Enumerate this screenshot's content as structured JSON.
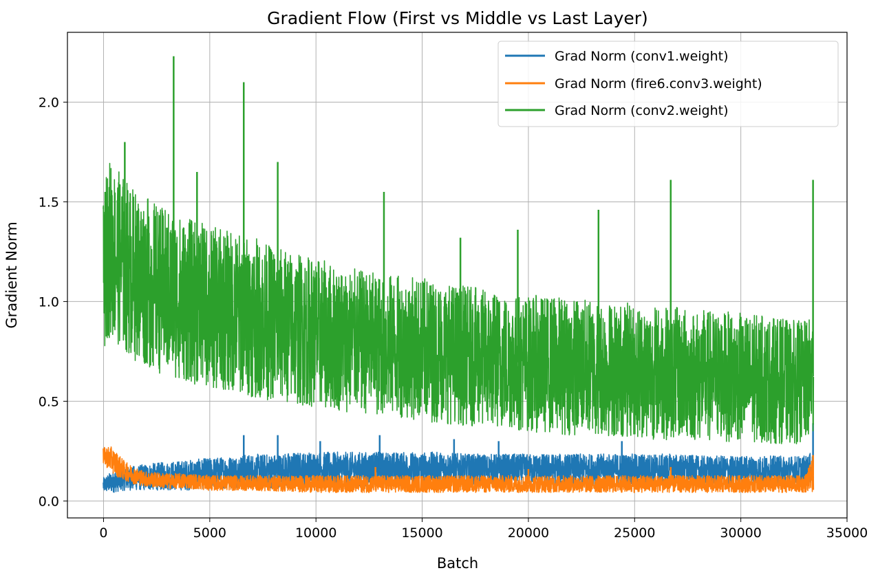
{
  "chart_data": {
    "type": "line",
    "title": "Gradient Flow (First vs Middle vs Last Layer)",
    "xlabel": "Batch",
    "ylabel": "Gradient Norm",
    "xlim": [
      -1700,
      35000
    ],
    "ylim": [
      -0.085,
      2.35
    ],
    "grid": true,
    "legend_position": "top-right",
    "x_ticks": [
      {
        "value": 0,
        "label": "0"
      },
      {
        "value": 5000,
        "label": "5000"
      },
      {
        "value": 10000,
        "label": "10000"
      },
      {
        "value": 15000,
        "label": "15000"
      },
      {
        "value": 20000,
        "label": "20000"
      },
      {
        "value": 25000,
        "label": "25000"
      },
      {
        "value": 30000,
        "label": "30000"
      },
      {
        "value": 35000,
        "label": "35000"
      }
    ],
    "y_ticks": [
      {
        "value": 0.0,
        "label": "0.0"
      },
      {
        "value": 0.5,
        "label": "0.5"
      },
      {
        "value": 1.0,
        "label": "1.0"
      },
      {
        "value": 1.5,
        "label": "1.5"
      },
      {
        "value": 2.0,
        "label": "2.0"
      }
    ],
    "x_range": [
      0,
      33400
    ],
    "series": [
      {
        "name": "Grad Norm (conv1.weight)",
        "color": "#1f77b4",
        "x": [
          0,
          500,
          1000,
          2000,
          3000,
          4000,
          5000,
          6000,
          7000,
          8000,
          9000,
          10000,
          11000,
          12000,
          13000,
          14000,
          15000,
          16000,
          17000,
          18000,
          19000,
          20000,
          21000,
          22000,
          23000,
          24000,
          25000,
          26000,
          27000,
          28000,
          29000,
          30000,
          31000,
          32000,
          33000,
          33400
        ],
        "upper": [
          0.12,
          0.16,
          0.17,
          0.19,
          0.2,
          0.21,
          0.22,
          0.23,
          0.24,
          0.24,
          0.25,
          0.25,
          0.25,
          0.25,
          0.25,
          0.25,
          0.25,
          0.25,
          0.24,
          0.24,
          0.24,
          0.24,
          0.24,
          0.24,
          0.24,
          0.24,
          0.24,
          0.24,
          0.24,
          0.23,
          0.23,
          0.23,
          0.23,
          0.23,
          0.23,
          0.25
        ],
        "lower": [
          0.04,
          0.04,
          0.05,
          0.05,
          0.05,
          0.05,
          0.06,
          0.06,
          0.06,
          0.06,
          0.06,
          0.07,
          0.07,
          0.07,
          0.07,
          0.07,
          0.07,
          0.08,
          0.08,
          0.08,
          0.08,
          0.08,
          0.08,
          0.08,
          0.08,
          0.08,
          0.08,
          0.08,
          0.08,
          0.08,
          0.08,
          0.08,
          0.08,
          0.08,
          0.08,
          0.08
        ],
        "spikes": [
          {
            "x": 6600,
            "y": 0.33
          },
          {
            "x": 8200,
            "y": 0.33
          },
          {
            "x": 10200,
            "y": 0.3
          },
          {
            "x": 13000,
            "y": 0.33
          },
          {
            "x": 16500,
            "y": 0.31
          },
          {
            "x": 18600,
            "y": 0.3
          },
          {
            "x": 24400,
            "y": 0.3
          },
          {
            "x": 33400,
            "y": 0.39
          }
        ]
      },
      {
        "name": "Grad Norm (fire6.conv3.weight)",
        "color": "#ff7f0e",
        "x": [
          0,
          300,
          600,
          1000,
          1500,
          2000,
          3000,
          4000,
          5000,
          7000,
          10000,
          13000,
          16000,
          20000,
          25000,
          30000,
          33000,
          33400
        ],
        "upper": [
          0.27,
          0.28,
          0.25,
          0.2,
          0.17,
          0.15,
          0.14,
          0.14,
          0.13,
          0.13,
          0.13,
          0.13,
          0.13,
          0.13,
          0.13,
          0.13,
          0.13,
          0.22
        ],
        "lower": [
          0.18,
          0.15,
          0.12,
          0.1,
          0.08,
          0.07,
          0.06,
          0.06,
          0.05,
          0.05,
          0.04,
          0.04,
          0.04,
          0.04,
          0.04,
          0.04,
          0.04,
          0.04
        ],
        "spikes": [
          {
            "x": 12800,
            "y": 0.17
          },
          {
            "x": 20000,
            "y": 0.16
          },
          {
            "x": 26700,
            "y": 0.17
          },
          {
            "x": 33400,
            "y": 0.23
          }
        ]
      },
      {
        "name": "Grad Norm (conv2.weight)",
        "color": "#2ca02c",
        "x": [
          0,
          200,
          500,
          1000,
          1500,
          2000,
          3000,
          4000,
          5000,
          6000,
          7000,
          8000,
          9000,
          10000,
          11000,
          12000,
          13000,
          14000,
          15000,
          16000,
          17000,
          18000,
          19000,
          20000,
          21000,
          22000,
          23000,
          24000,
          25000,
          26000,
          27000,
          28000,
          29000,
          30000,
          31000,
          32000,
          33000,
          33400
        ],
        "upper": [
          1.5,
          1.75,
          1.7,
          1.65,
          1.58,
          1.55,
          1.48,
          1.44,
          1.4,
          1.38,
          1.35,
          1.3,
          1.27,
          1.24,
          1.2,
          1.18,
          1.16,
          1.15,
          1.14,
          1.12,
          1.1,
          1.08,
          1.06,
          1.05,
          1.05,
          1.04,
          1.03,
          1.02,
          1.01,
          1.0,
          0.99,
          0.98,
          0.97,
          0.96,
          0.95,
          0.93,
          0.92,
          0.95
        ],
        "lower": [
          0.72,
          0.8,
          0.78,
          0.72,
          0.68,
          0.65,
          0.6,
          0.57,
          0.54,
          0.52,
          0.5,
          0.48,
          0.46,
          0.45,
          0.43,
          0.42,
          0.41,
          0.4,
          0.38,
          0.37,
          0.36,
          0.35,
          0.34,
          0.33,
          0.32,
          0.31,
          0.31,
          0.3,
          0.3,
          0.29,
          0.29,
          0.28,
          0.28,
          0.28,
          0.27,
          0.27,
          0.27,
          0.3
        ],
        "spikes": [
          {
            "x": 80,
            "y": 1.55
          },
          {
            "x": 1000,
            "y": 1.8
          },
          {
            "x": 3300,
            "y": 2.23
          },
          {
            "x": 4400,
            "y": 1.65
          },
          {
            "x": 6600,
            "y": 2.1
          },
          {
            "x": 8200,
            "y": 1.7
          },
          {
            "x": 13200,
            "y": 1.55
          },
          {
            "x": 16800,
            "y": 1.32
          },
          {
            "x": 19500,
            "y": 1.36
          },
          {
            "x": 23300,
            "y": 1.46
          },
          {
            "x": 26700,
            "y": 1.61
          },
          {
            "x": 33400,
            "y": 1.61
          }
        ]
      }
    ]
  }
}
